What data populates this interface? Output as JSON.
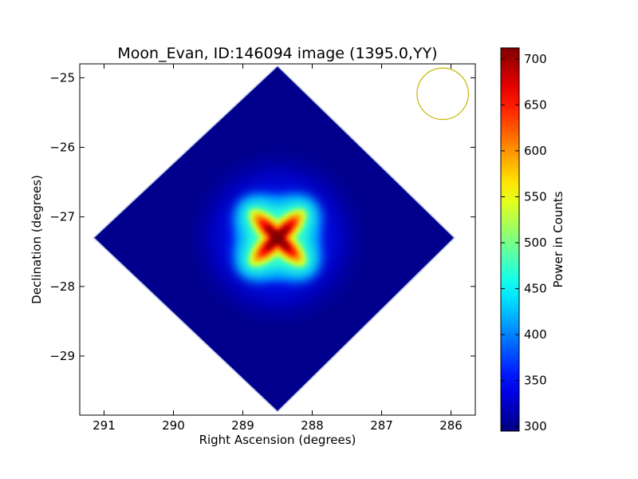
{
  "chart_data": {
    "type": "heatmap",
    "title": "Moon_Evan, ID:146094 image (1395.0,YY)",
    "xlabel": "Right Ascension (degrees)",
    "ylabel": "Declination (degrees)",
    "xlim": [
      291.35,
      285.65
    ],
    "ylim": [
      -29.85,
      -24.8
    ],
    "x_ticks": [
      291,
      290,
      289,
      288,
      287,
      286
    ],
    "x_tick_labels": [
      "291",
      "290",
      "289",
      "288",
      "287",
      "286"
    ],
    "y_ticks": [
      -25,
      -26,
      -27,
      -28,
      -29
    ],
    "y_tick_labels": [
      "−25",
      "−26",
      "−27",
      "−28",
      "−29"
    ],
    "colorbar": {
      "label": "Power in Counts",
      "range": [
        295,
        712
      ],
      "ticks": [
        300,
        350,
        400,
        450,
        500,
        550,
        600,
        650,
        700
      ],
      "tick_labels": [
        "300",
        "350",
        "400",
        "450",
        "500",
        "550",
        "600",
        "650",
        "700"
      ],
      "colormap": "jet"
    },
    "image": {
      "shape": "diamond",
      "center": [
        288.5,
        -27.3
      ],
      "vertices": [
        [
          288.5,
          -24.83
        ],
        [
          285.95,
          -27.3
        ],
        [
          288.5,
          -29.8
        ],
        [
          291.15,
          -27.3
        ]
      ],
      "background_level": 300,
      "peak_level": 712,
      "peak_position": [
        288.5,
        -27.3
      ],
      "feature": "X-shaped bright cross centred on peak"
    },
    "beam_circle": {
      "center": [
        286.12,
        -25.23
      ],
      "radius_deg": 0.37,
      "color": "#c8b400"
    },
    "colors": {
      "frame": "#000000",
      "background": "#ffffff"
    }
  }
}
